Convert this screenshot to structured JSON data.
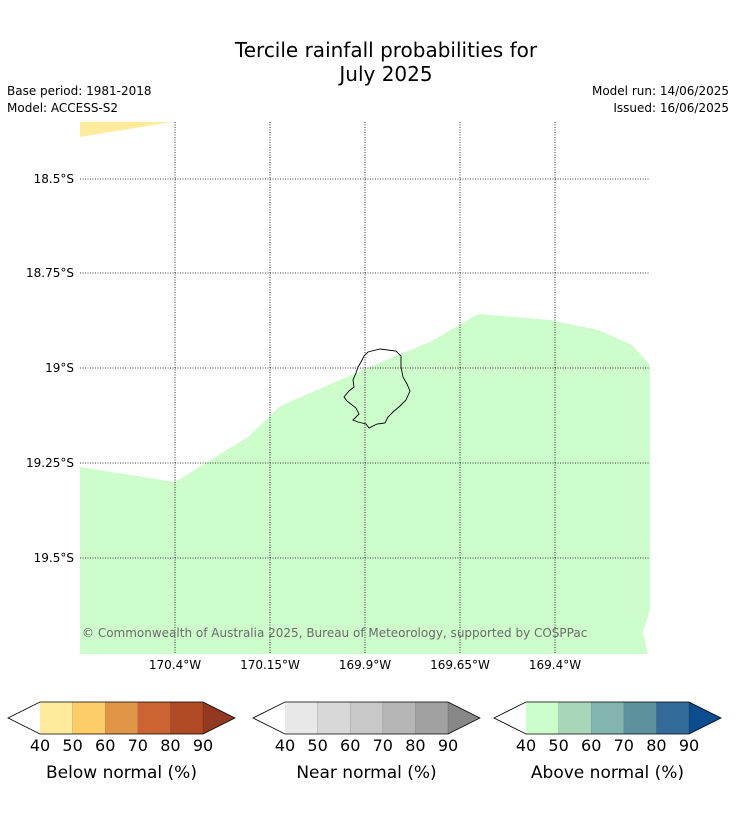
{
  "title_line1": "Tercile rainfall probabilities for",
  "title_line2": "July 2025",
  "base_period": "Base period: 1981-2018",
  "model": "Model: ACCESS-S2",
  "model_run": "Model run: 14/06/2025",
  "issued": "Issued: 16/06/2025",
  "latitudes": [
    "18.5°S",
    "18.75°S",
    "19°S",
    "19.25°S",
    "19.5°S"
  ],
  "longitudes": [
    "170.4°W",
    "170.15°W",
    "169.9°W",
    "169.65°W",
    "169.4°W"
  ],
  "map_fills": {
    "below_normal_category": "40-50",
    "below_normal_color": "#feeb9d",
    "above_normal_category": "40-50",
    "above_normal_color": "#ccfdca",
    "island_outline_color": "#000000",
    "graticule": "dotted"
  },
  "copyright": "© Commonwealth of Australia 2025, Bureau of Meteorology, supported by COSPPac",
  "colorbars": [
    {
      "title": "Below normal (%)",
      "ticks": [
        "40",
        "50",
        "60",
        "70",
        "80",
        "90"
      ],
      "colors": [
        "#feeb9d",
        "#fdcd69",
        "#e19546",
        "#cb6432",
        "#b04a25",
        "#933920"
      ]
    },
    {
      "title": "Near normal (%)",
      "ticks": [
        "40",
        "50",
        "60",
        "70",
        "80",
        "90"
      ],
      "colors": [
        "#e8e8e8",
        "#d8d8d8",
        "#c8c8c8",
        "#b6b6b6",
        "#a1a1a1",
        "#878787"
      ]
    },
    {
      "title": "Above normal (%)",
      "ticks": [
        "40",
        "50",
        "60",
        "70",
        "80",
        "90"
      ],
      "colors": [
        "#ccfdca",
        "#a9d6b8",
        "#81b5ad",
        "#5c919e",
        "#336a9a",
        "#0b4d8e"
      ]
    }
  ]
}
